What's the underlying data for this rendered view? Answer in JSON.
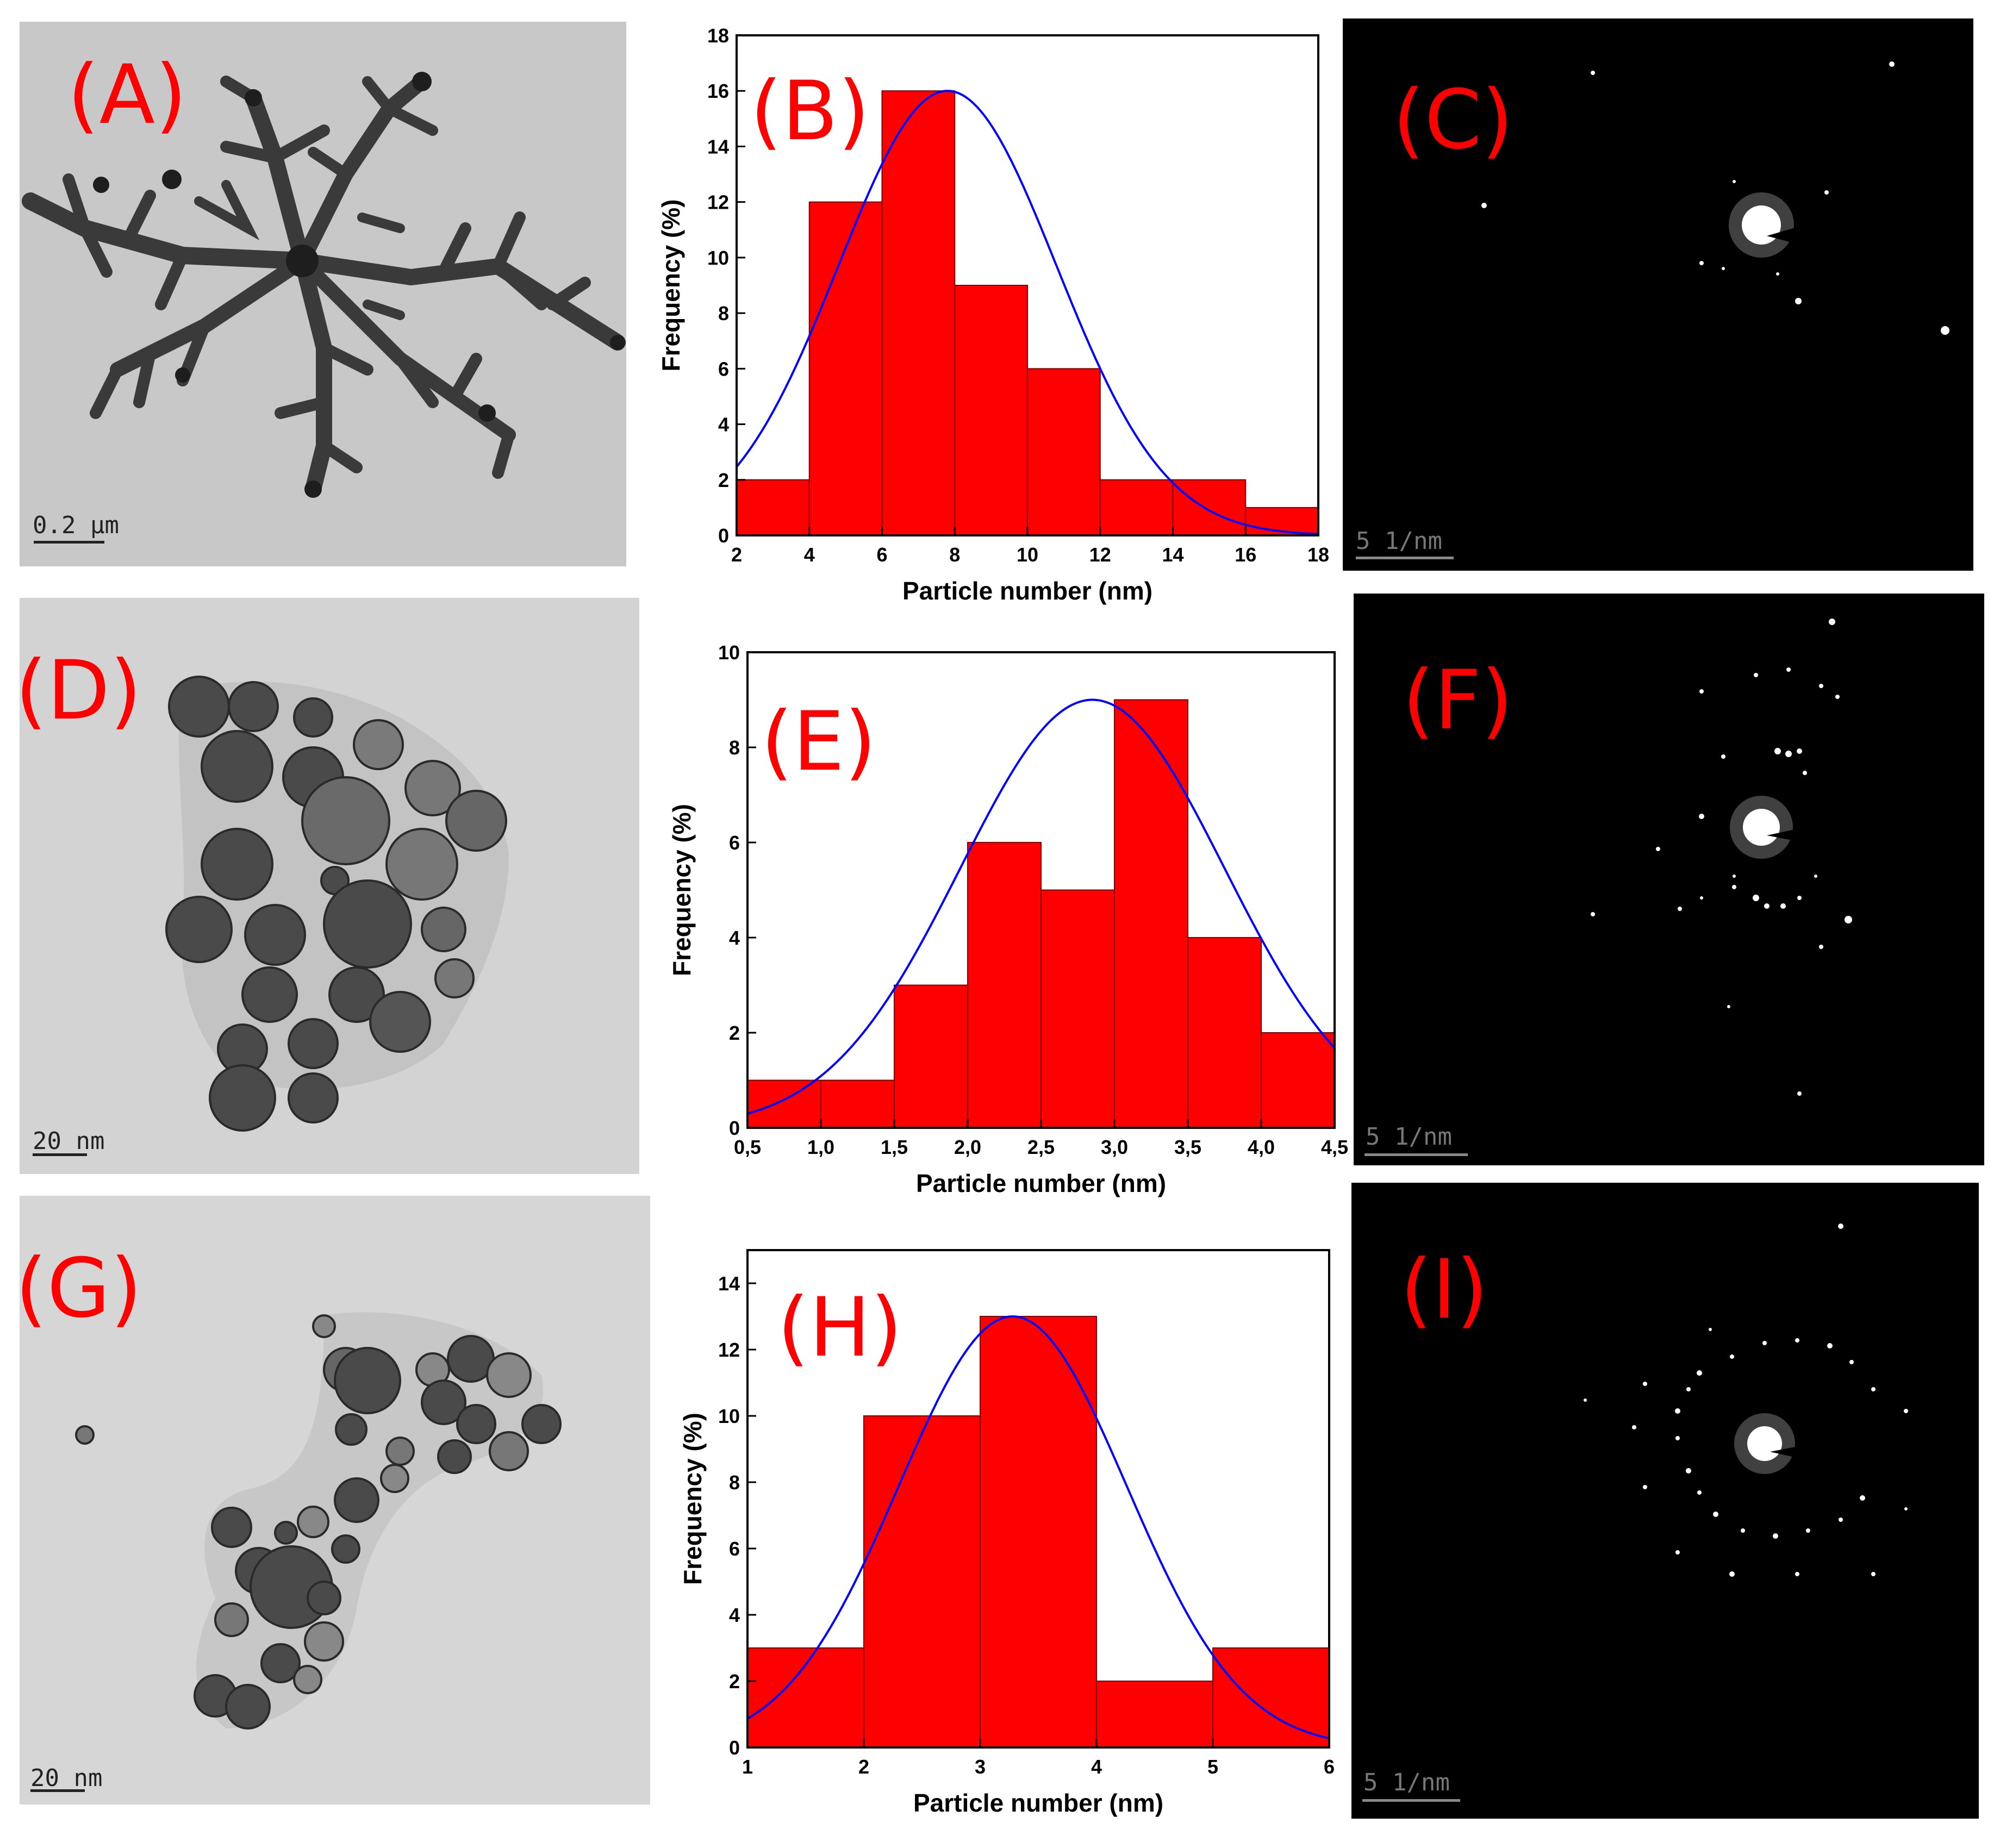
{
  "figure": {
    "panels": [
      {
        "id": "A",
        "label": "(A)",
        "kind": "tem-image",
        "scale_bar": "0.2 µm",
        "morphology": "dendritic"
      },
      {
        "id": "C",
        "label": "(C)",
        "kind": "saed-pattern",
        "scale_bar": "5 1/nm"
      },
      {
        "id": "D",
        "label": "(D)",
        "kind": "tem-image",
        "scale_bar": "20 nm",
        "morphology": "spherical"
      },
      {
        "id": "F",
        "label": "(F)",
        "kind": "saed-pattern",
        "scale_bar": "5 1/nm"
      },
      {
        "id": "G",
        "label": "(G)",
        "kind": "tem-image",
        "scale_bar": "20 nm",
        "morphology": "spherical"
      },
      {
        "id": "I",
        "label": "(I)",
        "kind": "saed-pattern",
        "scale_bar": "5 1/nm"
      }
    ]
  },
  "colors": {
    "bar_fill": "#ff0000",
    "fit_line": "#0000ff",
    "label": "#ff0000",
    "saed_background": "#000000",
    "tem_background": "#c8c8c8"
  },
  "chart_data": [
    {
      "panel": "(B)",
      "type": "bar",
      "histogram": true,
      "bin_edges": [
        2,
        4,
        6,
        8,
        10,
        12,
        14,
        16,
        18
      ],
      "values": [
        2,
        12,
        16,
        9,
        6,
        2,
        2,
        1
      ],
      "fit_curve": {
        "type": "gaussian",
        "center": 7.8,
        "peak": 16,
        "sigma": 3.0
      },
      "xlabel": "Particle number (nm)",
      "ylabel": "Frequency (%)",
      "xlim": [
        2,
        18
      ],
      "ylim": [
        0,
        18
      ],
      "xticks": [
        "2",
        "4",
        "6",
        "8",
        "10",
        "12",
        "14",
        "16",
        "18"
      ],
      "yticks": [
        "0",
        "2",
        "4",
        "6",
        "8",
        "10",
        "12",
        "14",
        "16",
        "18"
      ],
      "grid": false
    },
    {
      "panel": "(E)",
      "type": "bar",
      "histogram": true,
      "bin_edges": [
        0.5,
        1.0,
        1.5,
        2.0,
        2.5,
        3.0,
        3.5,
        4.0,
        4.5
      ],
      "values": [
        1,
        1,
        3,
        6,
        5,
        9,
        4,
        2
      ],
      "fit_curve": {
        "type": "gaussian",
        "center": 2.85,
        "peak": 9,
        "sigma": 0.9
      },
      "xlabel": "Particle number (nm)",
      "ylabel": "Frequency (%)",
      "xlim": [
        0.5,
        4.5
      ],
      "ylim": [
        0,
        10
      ],
      "xticks": [
        "0,5",
        "1,0",
        "1,5",
        "2,0",
        "2,5",
        "3,0",
        "3,5",
        "4,0",
        "4,5"
      ],
      "yticks": [
        "0",
        "2",
        "4",
        "6",
        "8",
        "10"
      ],
      "grid": false
    },
    {
      "panel": "(H)",
      "type": "bar",
      "histogram": true,
      "bin_edges": [
        1,
        2,
        3,
        4,
        5,
        6
      ],
      "values": [
        3,
        10,
        13,
        2,
        3
      ],
      "fit_curve": {
        "type": "gaussian",
        "center": 3.28,
        "peak": 13,
        "sigma": 0.98
      },
      "xlabel": "Particle number (nm)",
      "ylabel": "Frequency (%)",
      "xlim": [
        1,
        6
      ],
      "ylim": [
        0,
        15
      ],
      "xticks": [
        "1",
        "2",
        "3",
        "4",
        "5",
        "6"
      ],
      "yticks": [
        "0",
        "2",
        "4",
        "6",
        "8",
        "10",
        "12",
        "14"
      ],
      "grid": false
    }
  ]
}
